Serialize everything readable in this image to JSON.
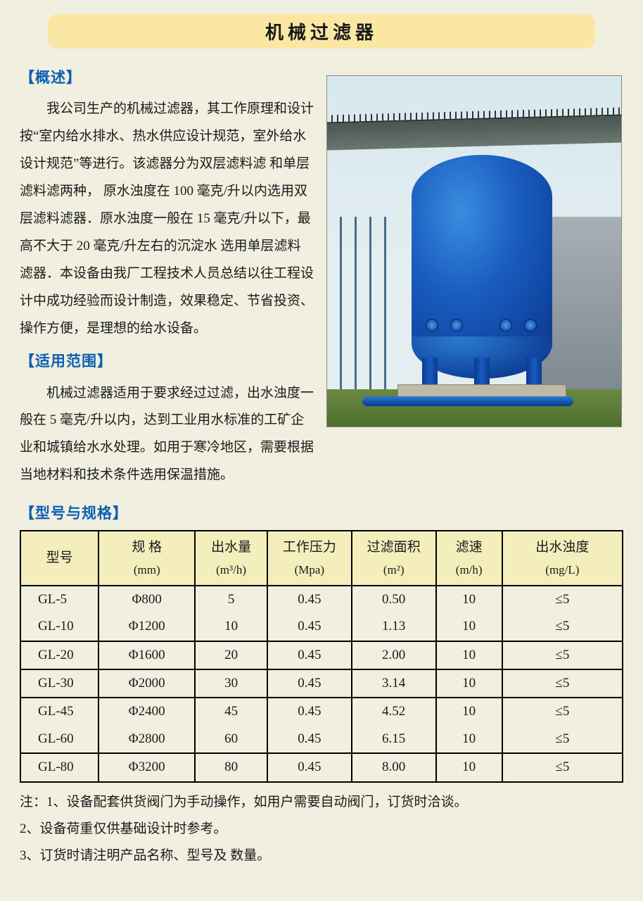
{
  "title": "机械过滤器",
  "sections": {
    "overview": {
      "heading": "【概述】",
      "body": "我公司生产的机械过滤器，其工作原理和设计按“室内给水排水、热水供应设计规范，室外给水设计规范”等进行。该滤器分为双层滤料滤 和单层滤料滤两种， 原水浊度在 100 毫克/升以内选用双层滤料滤器．原水浊度一般在 15 毫克/升以下，最高不大于 20 毫克/升左右的沉淀水 选用单层滤料滤器．本设备由我厂工程技术人员总结以往工程设计中成功经验而设计制造，效果稳定、节省投资、操作方便，是理想的给水设备。"
    },
    "scope": {
      "heading": "【适用范围】",
      "body": "机械过滤器适用于要求经过过滤，出水浊度一般在 5 毫克/升以内，达到工业用水标准的工矿企业和城镇给水水处理。如用于寒冷地区，需要根据当地材料和技术条件选用保温措施。"
    },
    "spec": {
      "heading": "【型号与规格】"
    }
  },
  "image": {
    "alt": "蓝色立式机械过滤器安装于户外混凝土基础上，背景为工业厂房和高架管廊"
  },
  "table": {
    "columns": [
      {
        "label": "型号",
        "sub": "",
        "width": "13%"
      },
      {
        "label": "规 格",
        "sub": "(mm)",
        "width": "16%"
      },
      {
        "label": "出水量",
        "sub": "(m³/h)",
        "width": "12%"
      },
      {
        "label": "工作压力",
        "sub": "(Mpa)",
        "width": "14%"
      },
      {
        "label": "过滤面积",
        "sub": "(m²)",
        "width": "14%"
      },
      {
        "label": "滤速",
        "sub": "(m/h)",
        "width": "11%"
      },
      {
        "label": "出水浊度",
        "sub": "(mg/L)",
        "width": "20%"
      }
    ],
    "groups": [
      {
        "rows": [
          [
            "GL-5",
            "Φ800",
            "5",
            "0.45",
            "0.50",
            "10",
            "≤5"
          ],
          [
            "GL-10",
            "Φ1200",
            "10",
            "0.45",
            "1.13",
            "10",
            "≤5"
          ]
        ]
      },
      {
        "rows": [
          [
            "GL-20",
            "Φ1600",
            "20",
            "0.45",
            "2.00",
            "10",
            "≤5"
          ]
        ]
      },
      {
        "rows": [
          [
            "GL-30",
            "Φ2000",
            "30",
            "0.45",
            "3.14",
            "10",
            "≤5"
          ]
        ]
      },
      {
        "rows": [
          [
            "GL-45",
            "Φ2400",
            "45",
            "0.45",
            "4.52",
            "10",
            "≤5"
          ],
          [
            "GL-60",
            "Φ2800",
            "60",
            "0.45",
            "6.15",
            "10",
            "≤5"
          ]
        ]
      },
      {
        "rows": [
          [
            "GL-80",
            "Φ3200",
            "80",
            "0.45",
            "8.00",
            "10",
            "≤5"
          ]
        ]
      }
    ],
    "header_bg": "#f4eebc",
    "border_color": "#000000"
  },
  "notes": [
    "注：1、设备配套供货阀门为手动操作，如用户需要自动阀门，订货时洽谈。",
    "2、设备荷重仅供基础设计时参考。",
    "3、订货时请注明产品名称、型号及 数量。"
  ],
  "colors": {
    "page_bg": "#f0efe0",
    "banner_bg": "#f9e7a3",
    "heading_color": "#0d5fb2",
    "text_color": "#1a1a1a"
  },
  "fonts": {
    "body_family": "SimSun, 宋体, serif",
    "body_size_pt": 14,
    "title_size_pt": 20,
    "heading_size_pt": 16
  }
}
